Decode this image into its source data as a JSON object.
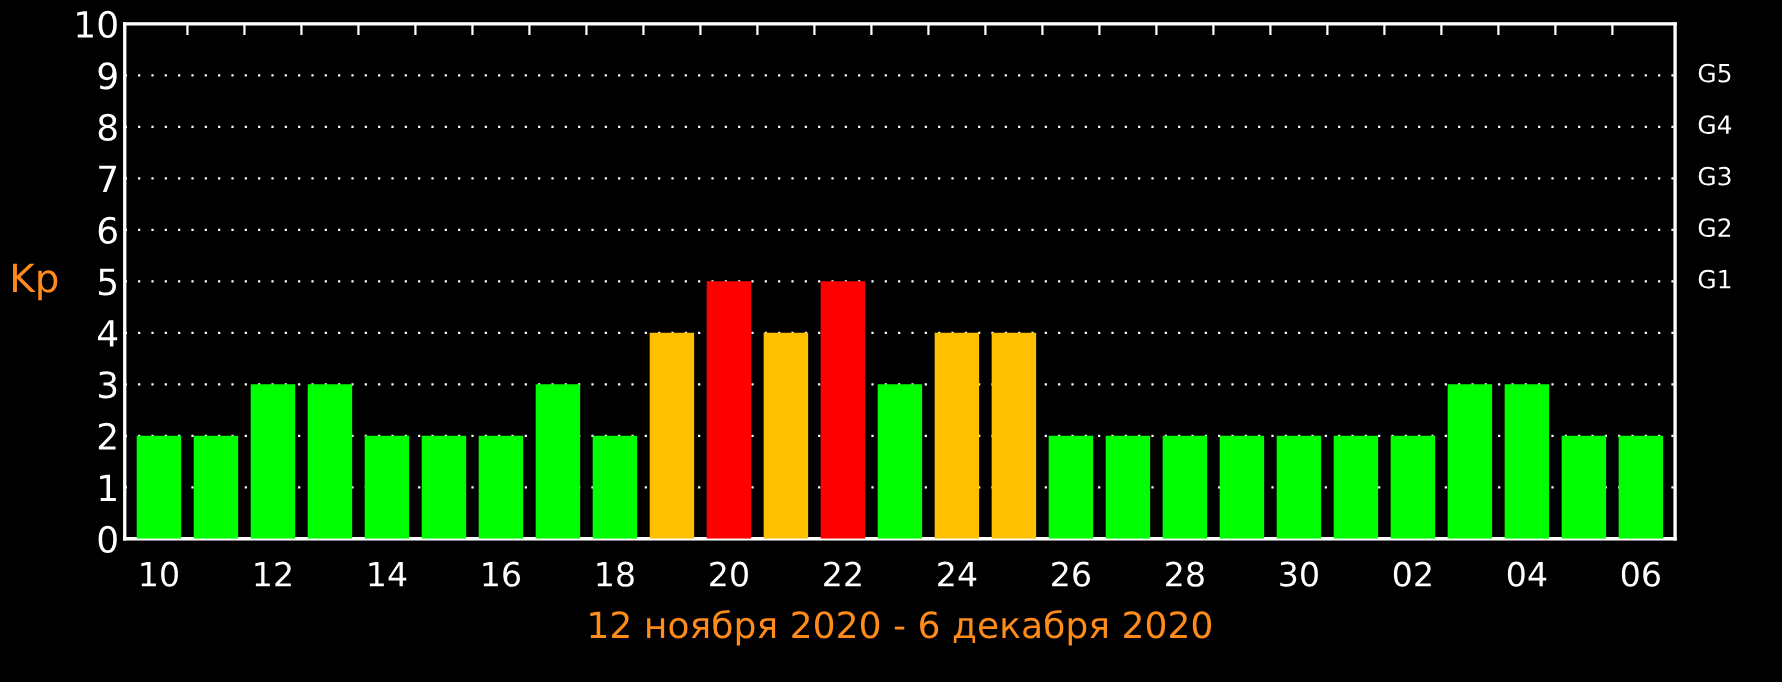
{
  "chart_data": {
    "type": "bar",
    "xlabel": "12 ноября 2020 - 6 декабря 2020",
    "ylabel": "Kp",
    "categories": [
      "10",
      null,
      "12",
      null,
      "14",
      null,
      "16",
      null,
      "18",
      null,
      "20",
      null,
      "22",
      null,
      "24",
      null,
      "26",
      null,
      "28",
      null,
      "30",
      null,
      "02",
      null,
      "04",
      null,
      "06"
    ],
    "values": [
      2,
      2,
      3,
      3,
      2,
      2,
      2,
      3,
      2,
      4,
      5,
      4,
      5,
      3,
      4,
      4,
      2,
      2,
      2,
      2,
      2,
      2,
      2,
      3,
      3,
      2,
      2
    ],
    "colors": [
      "#00ff00",
      "#00ff00",
      "#00ff00",
      "#00ff00",
      "#00ff00",
      "#00ff00",
      "#00ff00",
      "#00ff00",
      "#00ff00",
      "#ffc000",
      "#ff0000",
      "#ffc000",
      "#ff0000",
      "#00ff00",
      "#ffc000",
      "#ffc000",
      "#00ff00",
      "#00ff00",
      "#00ff00",
      "#00ff00",
      "#00ff00",
      "#00ff00",
      "#00ff00",
      "#00ff00",
      "#00ff00",
      "#00ff00",
      "#00ff00"
    ],
    "ylim": [
      0,
      10
    ],
    "yticks": [
      0,
      1,
      2,
      3,
      4,
      5,
      6,
      7,
      8,
      9,
      10
    ],
    "ref_lines": [
      {
        "axis": "y",
        "value": 1,
        "label": null,
        "color": "#ffffff",
        "line_style": "dotted"
      },
      {
        "axis": "y",
        "value": 2,
        "label": null,
        "color": "#ffffff",
        "line_style": "dotted"
      },
      {
        "axis": "y",
        "value": 3,
        "label": null,
        "color": "#ffffff",
        "line_style": "dotted"
      },
      {
        "axis": "y",
        "value": 4,
        "label": null,
        "color": "#ffffff",
        "line_style": "dotted"
      },
      {
        "axis": "y",
        "value": 5,
        "label": "G1",
        "color": "#ffffff",
        "line_style": "dotted"
      },
      {
        "axis": "y",
        "value": 6,
        "label": "G2",
        "color": "#ffffff",
        "line_style": "dotted"
      },
      {
        "axis": "y",
        "value": 7,
        "label": "G3",
        "color": "#ffffff",
        "line_style": "dotted"
      },
      {
        "axis": "y",
        "value": 8,
        "label": "G4",
        "color": "#ffffff",
        "line_style": "dotted"
      },
      {
        "axis": "y",
        "value": 9,
        "label": "G5",
        "color": "#ffffff",
        "line_style": "dotted"
      }
    ],
    "legend": false
  }
}
